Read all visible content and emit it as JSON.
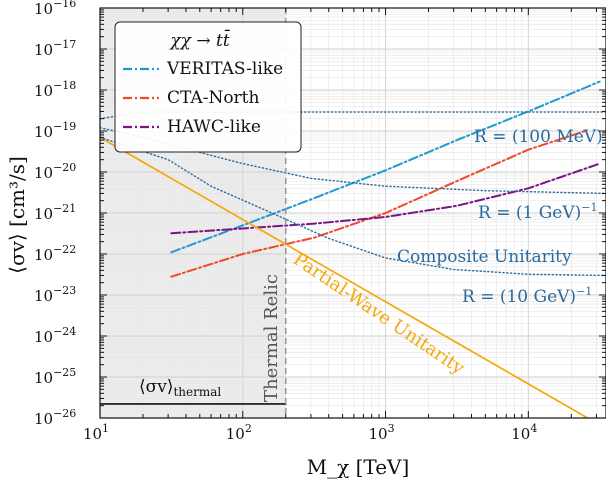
{
  "chart_data": {
    "type": "line",
    "xscale": "log",
    "yscale": "log",
    "xlim": [
      10,
      35000
    ],
    "ylim": [
      1e-26,
      1e-16
    ],
    "xlabel": "M_χ [TeV]",
    "ylabel": "⟨σv⟩ [cm³/s]",
    "grid": true,
    "legend": {
      "title": "χχ → tt̄",
      "placement": "top-left"
    },
    "x_ticks": [
      {
        "value": 10,
        "base": "10",
        "exp": "1"
      },
      {
        "value": 100,
        "base": "10",
        "exp": "2"
      },
      {
        "value": 1000,
        "base": "10",
        "exp": "3"
      },
      {
        "value": 10000,
        "base": "10",
        "exp": "4"
      }
    ],
    "y_ticks": [
      {
        "value": 1e-16,
        "base": "10",
        "exp": "−16"
      },
      {
        "value": 1e-17,
        "base": "10",
        "exp": "−17"
      },
      {
        "value": 1e-18,
        "base": "10",
        "exp": "−18"
      },
      {
        "value": 1e-19,
        "base": "10",
        "exp": "−19"
      },
      {
        "value": 1e-20,
        "base": "10",
        "exp": "−20"
      },
      {
        "value": 1e-21,
        "base": "10",
        "exp": "−21"
      },
      {
        "value": 1e-22,
        "base": "10",
        "exp": "−22"
      },
      {
        "value": 1e-23,
        "base": "10",
        "exp": "−23"
      },
      {
        "value": 1e-24,
        "base": "10",
        "exp": "−24"
      },
      {
        "value": 1e-25,
        "base": "10",
        "exp": "−25"
      },
      {
        "value": 1e-26,
        "base": "10",
        "exp": "−26"
      }
    ],
    "series": [
      {
        "name": "VERITAS-like",
        "color": "#1f9ad1",
        "dash": "dashdot",
        "x": [
          31.6,
          100,
          316,
          1000,
          3160,
          10000,
          31600
        ],
        "y": [
          1.1e-22,
          5e-22,
          2.3e-21,
          1.1e-20,
          6e-20,
          3e-19,
          1.6e-18
        ]
      },
      {
        "name": "CTA-North",
        "color": "#ef4a2a",
        "dash": "dashdot",
        "x": [
          31.6,
          100,
          316,
          1000,
          3160,
          10000,
          25000
        ],
        "y": [
          2.8e-23,
          1e-22,
          2.5e-22,
          1e-21,
          6e-21,
          3.5e-20,
          1e-19
        ]
      },
      {
        "name": "HAWC-like",
        "color": "#7b1385",
        "dash": "dashdot",
        "x": [
          31.6,
          100,
          316,
          1000,
          3160,
          10000,
          31600
        ],
        "y": [
          3.2e-22,
          4.2e-22,
          5.5e-22,
          8e-22,
          1.5e-21,
          4e-21,
          1.6e-20
        ]
      },
      {
        "name": "Partial-Wave Unitarity",
        "color": "#f5a70b",
        "dash": "solid",
        "x": [
          10,
          26000
        ],
        "y": [
          7e-20,
          1e-26
        ]
      },
      {
        "name": "Composite Unitarity R = (100 MeV)⁻¹",
        "color": "#2a6a9e",
        "dash": "dotted",
        "x": [
          10,
          20,
          50,
          100,
          1000,
          35000
        ],
        "y": [
          2e-19,
          2.9e-19,
          2.9e-19,
          2.9e-19,
          2.9e-19,
          2.9e-19
        ]
      },
      {
        "name": "Composite Unitarity R = (1 GeV)⁻¹",
        "color": "#2a6a9e",
        "dash": "dotted",
        "x": [
          10,
          20,
          50,
          100,
          300,
          1000,
          5000,
          35000
        ],
        "y": [
          1.2e-19,
          7e-20,
          3e-20,
          1.6e-20,
          7e-21,
          4.5e-21,
          3.5e-21,
          3e-21
        ]
      },
      {
        "name": "Composite Unitarity R = (10 GeV)⁻¹",
        "color": "#2a6a9e",
        "dash": "dotted",
        "x": [
          10,
          30,
          60,
          150,
          400,
          1000,
          3000,
          10000,
          35000
        ],
        "y": [
          7e-20,
          2e-20,
          4.5e-21,
          1.1e-21,
          2.4e-22,
          8e-23,
          4.2e-23,
          3.2e-23,
          3e-23
        ]
      },
      {
        "name": "⟨σv⟩ thermal",
        "color": "#111111",
        "dash": "solid",
        "x": [
          10,
          200
        ],
        "y": [
          2.2e-26,
          2.2e-26
        ]
      }
    ],
    "thermal_relic_mass": 200,
    "annotations": {
      "thermal_relic": "Thermal Relic",
      "partial_wave": "Partial-Wave Unitarity",
      "composite": "Composite Unitarity",
      "r_100mev": "R = (100 MeV)",
      "r_1gev": "R = (1 GeV)",
      "r_10gev": "R = (10 GeV)",
      "r_exp": "−1",
      "thermal_main": "⟨σv⟩",
      "thermal_sub": "thermal"
    }
  }
}
